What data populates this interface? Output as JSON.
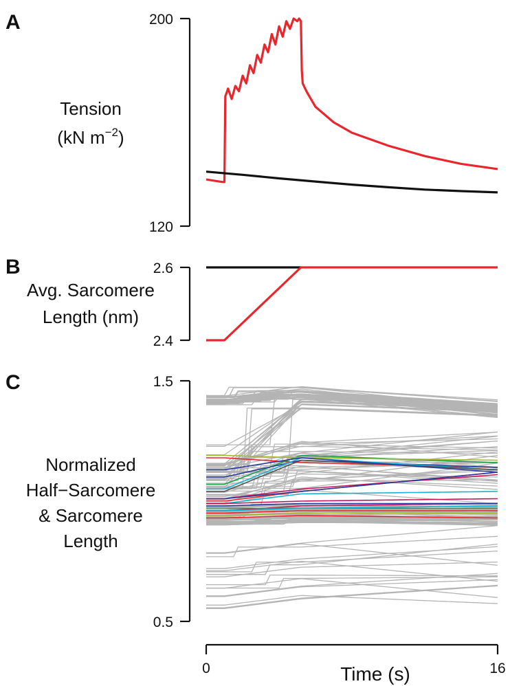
{
  "chart_data": [
    {
      "panel": "A",
      "type": "line",
      "ylabel_line1": "Tension",
      "ylabel_line2": "(kN m",
      "ylabel_sup": "−2",
      "ylabel_close": ")",
      "ylim": [
        120,
        200
      ],
      "yticks": [
        "120",
        "200"
      ],
      "xlim": [
        0,
        16
      ],
      "series": [
        {
          "color": "#e8262b",
          "x": [
            0,
            0.9,
            1.0,
            1.05,
            1.2,
            1.4,
            1.6,
            1.8,
            2.0,
            2.2,
            2.4,
            2.6,
            2.8,
            3.0,
            3.2,
            3.4,
            3.6,
            3.8,
            4.0,
            4.2,
            4.4,
            4.6,
            4.8,
            5.0,
            5.1,
            5.2,
            5.25,
            5.3,
            5.5,
            6.0,
            7.0,
            8.0,
            10.0,
            12.0,
            14.0,
            16.0
          ],
          "y": [
            138,
            137,
            137,
            170,
            173,
            169,
            174,
            172,
            178,
            175,
            182,
            179,
            186,
            183,
            190,
            187,
            194,
            190,
            197,
            193,
            199,
            196,
            200,
            199,
            200,
            199,
            180,
            175,
            172,
            166,
            160,
            156,
            151,
            147,
            144,
            142
          ]
        },
        {
          "color": "#111111",
          "x": [
            0,
            2,
            4,
            6,
            8,
            10,
            12,
            14,
            16
          ],
          "y": [
            141,
            139.8,
            138.4,
            137.2,
            136,
            135,
            134.1,
            133.5,
            133
          ]
        }
      ]
    },
    {
      "panel": "B",
      "type": "line",
      "ylabel_line1": "Avg. Sarcomere",
      "ylabel_line2": "Length (nm)",
      "ylim": [
        2.4,
        2.6
      ],
      "yticks": [
        "2.4",
        "2.6"
      ],
      "xlim": [
        0,
        16
      ],
      "series": [
        {
          "color": "#111111",
          "x": [
            0,
            5.2
          ],
          "y": [
            2.6,
            2.6
          ]
        },
        {
          "color": "#e8262b",
          "x": [
            0,
            1.0,
            5.2,
            16
          ],
          "y": [
            2.4,
            2.4,
            2.6,
            2.6
          ]
        }
      ]
    },
    {
      "panel": "C",
      "type": "line",
      "ylabel_lines": [
        "Normalized",
        "Half−Sarcomere",
        "& Sarcomere",
        "Length"
      ],
      "ylim": [
        0.5,
        1.5
      ],
      "yticks": [
        "0.5",
        "1.5"
      ],
      "xlim": [
        0,
        16
      ],
      "xticks": [
        "0",
        "16"
      ],
      "xlabel": "Time (s)",
      "gray_color": "#b4b4b4",
      "gray_traces": 150,
      "colored_series": [
        {
          "color": "#e8262b",
          "y0": 1.18,
          "y1": 1.16,
          "y2": 1.14
        },
        {
          "color": "#1b9e4b",
          "y0": 1.07,
          "y1": 1.19,
          "y2": 1.16
        },
        {
          "color": "#2a3b9b",
          "y0": 1.1,
          "y1": 1.17,
          "y2": 1.14
        },
        {
          "color": "#17b3d6",
          "y0": 1.05,
          "y1": 1.18,
          "y2": 1.13
        },
        {
          "color": "#a7b92e",
          "y0": 1.19,
          "y1": 1.18,
          "y2": 1.17
        },
        {
          "color": "#555555",
          "y0": 1.04,
          "y1": 1.17,
          "y2": 1.13
        },
        {
          "color": "#2a3b9b",
          "y0": 1.13,
          "y1": 1.18,
          "y2": 1.12
        },
        {
          "color": "#e8262b",
          "y0": 1.0,
          "y1": 1.04,
          "y2": 1.12
        },
        {
          "color": "#c2185b",
          "y0": 1.01,
          "y1": 1.05,
          "y2": 1.11
        },
        {
          "color": "#2a3b9b",
          "y0": 1.01,
          "y1": 1.04,
          "y2": 1.12
        },
        {
          "color": "#17b3d6",
          "y0": 0.99,
          "y1": 1.03,
          "y2": 1.04
        },
        {
          "color": "#c2185b",
          "y0": 0.96,
          "y1": 0.98,
          "y2": 0.99
        },
        {
          "color": "#1b9e4b",
          "y0": 0.97,
          "y1": 0.97,
          "y2": 0.97
        },
        {
          "color": "#e8262b",
          "y0": 0.95,
          "y1": 0.96,
          "y2": 0.96
        },
        {
          "color": "#17b3d6",
          "y0": 0.96,
          "y1": 0.97,
          "y2": 0.98
        },
        {
          "color": "#a7b92e",
          "y0": 0.94,
          "y1": 0.95,
          "y2": 0.95
        },
        {
          "color": "#e8262b",
          "y0": 0.93,
          "y1": 0.94,
          "y2": 0.93
        },
        {
          "color": "#2a3b9b",
          "y0": 0.98,
          "y1": 0.99,
          "y2": 0.99
        },
        {
          "color": "#c2185b",
          "y0": 0.99,
          "y1": 1.0,
          "y2": 1.01
        }
      ]
    }
  ]
}
